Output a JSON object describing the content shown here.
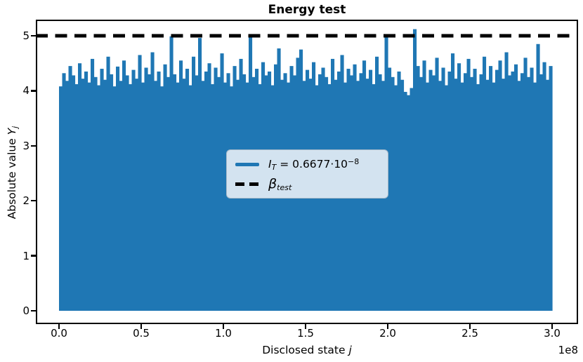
{
  "title": "Energy test",
  "axes": {
    "xlabel_prefix": "Disclosed state ",
    "xlabel_var": "j",
    "ylabel_prefix": "Absolute value ",
    "ylabel_var": "Y",
    "ylabel_sub": "j",
    "x_offset_label": "1e8",
    "x_ticks": [
      "0.0",
      "0.5",
      "1.0",
      "1.5",
      "2.0",
      "2.5",
      "3.0"
    ],
    "y_ticks": [
      "0",
      "1",
      "2",
      "3",
      "4",
      "5"
    ]
  },
  "legend": {
    "item1_var": "I",
    "item1_sub": "T",
    "item1_rest": " = 0.6677·10",
    "item1_exp": "−8",
    "item2_var": "β",
    "item2_sub": "test"
  },
  "colors": {
    "series": "#1f77b4",
    "threshold": "#000000",
    "legend_bg": "#d3e3f0",
    "legend_border": "#a7b9c8"
  },
  "chart_data": {
    "type": "bar",
    "subtype": "dense-stem-plot",
    "title": "Energy test",
    "xlabel": "Disclosed state j",
    "ylabel": "Absolute value Y_j",
    "x_axis_multiplier": "1e8",
    "x_tick_values_e8": [
      0.0,
      0.5,
      1.0,
      1.5,
      2.0,
      2.5,
      3.0
    ],
    "y_tick_values": [
      0,
      1,
      2,
      3,
      4,
      5
    ],
    "xlim_e8": [
      -0.14,
      3.16
    ],
    "ylim": [
      -0.24,
      5.29
    ],
    "baseline": 0,
    "grid": false,
    "legend_position": "center",
    "series_label": "I_T = 0.6677·10^-8",
    "threshold_line": {
      "label": "β_test",
      "value": 5.0,
      "style": "dashed",
      "color": "#000000"
    },
    "envelope_note": "top envelope of dense stems, sampled uniformly from x=0 to x=3e8; solid fill from 0 to each value",
    "x_start_e8": 0,
    "x_end_e8": 3.0,
    "envelope_y": [
      4.08,
      4.32,
      4.18,
      4.45,
      4.28,
      4.12,
      4.5,
      4.22,
      4.35,
      4.15,
      4.58,
      4.25,
      4.1,
      4.4,
      4.2,
      4.62,
      4.3,
      4.08,
      4.44,
      4.18,
      4.55,
      4.28,
      4.12,
      4.38,
      4.22,
      4.65,
      4.15,
      4.42,
      4.3,
      4.7,
      4.18,
      4.35,
      4.08,
      4.48,
      4.25,
      4.99,
      4.3,
      4.15,
      4.55,
      4.22,
      4.4,
      4.1,
      4.62,
      4.28,
      4.96,
      4.18,
      4.35,
      4.5,
      4.12,
      4.42,
      4.25,
      4.68,
      4.15,
      4.32,
      4.08,
      4.45,
      4.2,
      4.58,
      4.3,
      4.15,
      5.0,
      4.25,
      4.4,
      4.12,
      4.52,
      4.28,
      4.35,
      4.1,
      4.48,
      4.77,
      4.2,
      4.32,
      4.15,
      4.45,
      4.28,
      4.6,
      4.75,
      4.18,
      4.38,
      4.22,
      4.52,
      4.1,
      4.3,
      4.42,
      4.25,
      4.12,
      4.58,
      4.2,
      4.35,
      4.65,
      4.15,
      4.4,
      4.28,
      4.48,
      4.18,
      4.32,
      4.55,
      4.22,
      4.38,
      4.12,
      4.62,
      4.3,
      4.18,
      5.0,
      4.42,
      4.25,
      4.1,
      4.35,
      4.2,
      3.98,
      3.92,
      4.05,
      5.12,
      4.45,
      4.25,
      4.55,
      4.15,
      4.38,
      4.28,
      4.6,
      4.18,
      4.42,
      4.1,
      4.35,
      4.68,
      4.22,
      4.5,
      4.15,
      4.32,
      4.58,
      4.25,
      4.4,
      4.12,
      4.3,
      4.62,
      4.2,
      4.45,
      4.15,
      4.38,
      4.55,
      4.22,
      4.7,
      4.28,
      4.35,
      4.48,
      4.18,
      4.32,
      4.6,
      4.25,
      4.42,
      4.15,
      4.85,
      4.3,
      4.52,
      4.2,
      4.45
    ]
  }
}
